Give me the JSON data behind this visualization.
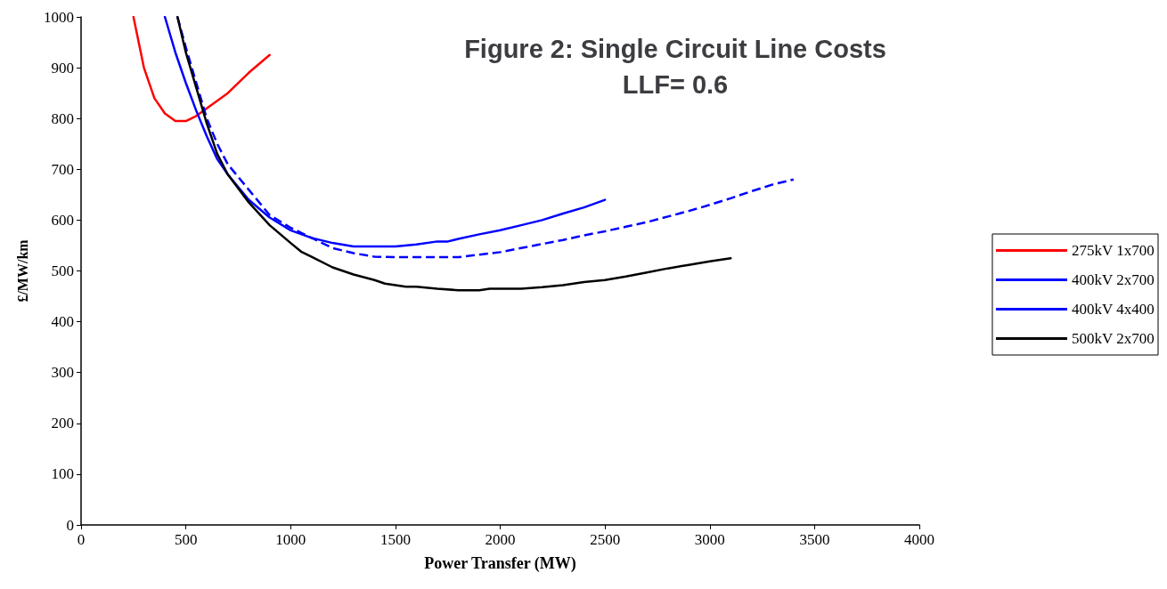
{
  "chart_data": {
    "type": "line",
    "title": "Figure 2: Single Circuit Line Costs\nLLF= 0.6",
    "xlabel": "Power Transfer (MW)",
    "ylabel": "£/MW/km",
    "xlim": [
      0,
      4000
    ],
    "xticks": [
      0,
      500,
      1000,
      1500,
      2000,
      2500,
      3000,
      3500,
      4000
    ],
    "ylim": [
      0,
      1000
    ],
    "yticks": [
      0,
      100,
      200,
      300,
      400,
      500,
      600,
      700,
      800,
      900,
      1000
    ],
    "grid": false,
    "legend": "right",
    "marker": "none",
    "series": [
      {
        "name": "275kV 1x700",
        "color": "#ff0000",
        "line_style": "solid",
        "x": [
          250,
          300,
          350,
          400,
          450,
          500,
          550,
          600,
          700,
          800,
          900
        ],
        "values": [
          1000,
          900,
          840,
          810,
          795,
          795,
          805,
          820,
          850,
          890,
          925
        ]
      },
      {
        "name": "400kV 2x700",
        "color": "#0000ff",
        "line_style": "solid",
        "x": [
          400,
          450,
          500,
          550,
          600,
          650,
          700,
          800,
          900,
          1000,
          1100,
          1200,
          1300,
          1400,
          1500,
          1600,
          1700,
          1750,
          1800,
          1900,
          2000,
          2100,
          2200,
          2300,
          2400,
          2500
        ],
        "values": [
          1000,
          930,
          870,
          815,
          765,
          720,
          690,
          640,
          605,
          580,
          565,
          555,
          548,
          548,
          548,
          552,
          558,
          558,
          563,
          572,
          580,
          590,
          600,
          613,
          625,
          640
        ]
      },
      {
        "name": "400kV 4x400",
        "color": "#0000ff",
        "line_style": "dashed",
        "x": [
          460,
          500,
          550,
          600,
          650,
          700,
          800,
          900,
          1000,
          1100,
          1200,
          1300,
          1400,
          1500,
          1600,
          1700,
          1800,
          1900,
          2000,
          2100,
          2200,
          2300,
          2400,
          2500,
          2600,
          2700,
          2800,
          2900,
          3000,
          3100,
          3200,
          3300,
          3400
        ],
        "values": [
          1000,
          940,
          870,
          800,
          750,
          710,
          660,
          610,
          585,
          565,
          545,
          535,
          528,
          527,
          527,
          527,
          527,
          532,
          537,
          545,
          553,
          561,
          570,
          578,
          587,
          596,
          607,
          618,
          630,
          643,
          657,
          670,
          680
        ]
      },
      {
        "name": "500kV 2x700",
        "color": "#000000",
        "line_style": "solid",
        "x": [
          460,
          500,
          550,
          600,
          650,
          700,
          800,
          900,
          1000,
          1050,
          1100,
          1200,
          1300,
          1400,
          1450,
          1550,
          1600,
          1700,
          1800,
          1900,
          1950,
          2100,
          2200,
          2300,
          2400,
          2500,
          2600,
          2700,
          2800,
          2900,
          3000,
          3100
        ],
        "values": [
          1000,
          930,
          860,
          790,
          730,
          690,
          635,
          590,
          555,
          538,
          528,
          507,
          493,
          482,
          475,
          469,
          469,
          465,
          462,
          462,
          465,
          465,
          468,
          472,
          478,
          482,
          489,
          497,
          505,
          512,
          519,
          525
        ]
      }
    ]
  }
}
